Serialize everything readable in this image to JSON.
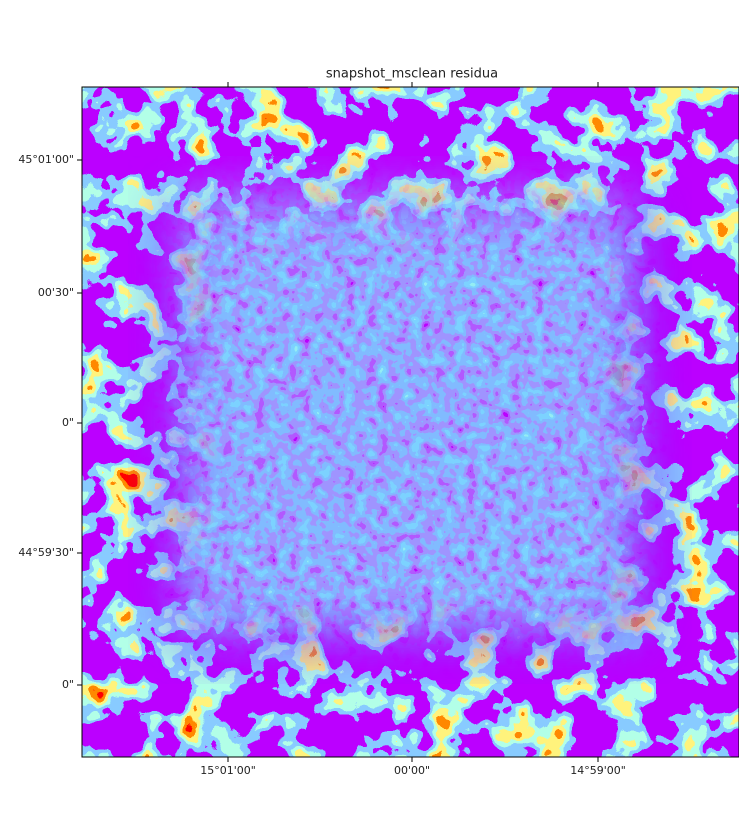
{
  "plot": {
    "title": "snapshot_msclean residua",
    "x_tick_labels": [
      "15°01'00\"",
      "00'00\"",
      "14°59'00\""
    ],
    "y_tick_labels": [
      "45°01'00\"",
      "00'30\"",
      "0\"",
      "44°59'30\"",
      "0\""
    ]
  }
}
